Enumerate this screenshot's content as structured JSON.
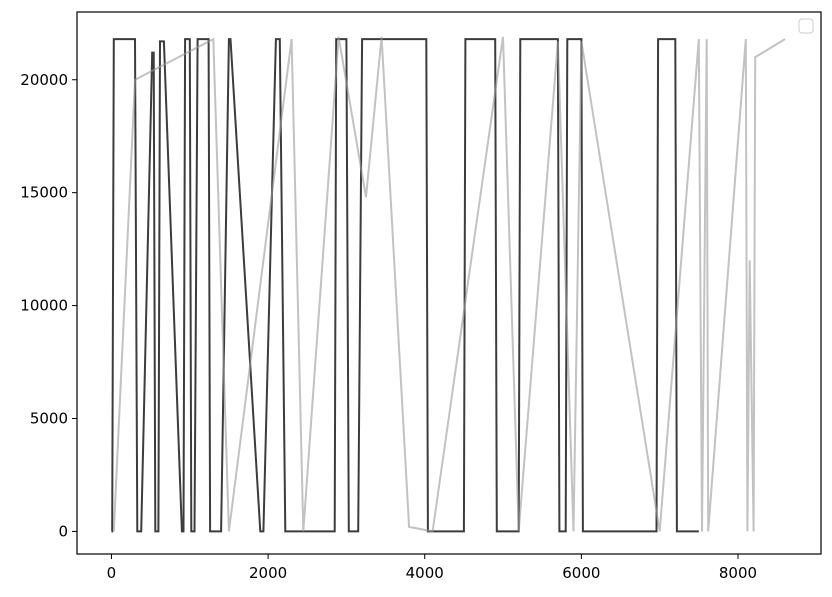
{
  "chart_data": {
    "type": "line",
    "title": "",
    "xlabel": "",
    "ylabel": "",
    "xlim": [
      -440,
      9060
    ],
    "ylim": [
      -1000,
      23000
    ],
    "xticks": [
      0,
      2000,
      4000,
      6000,
      8000
    ],
    "xtick_labels": [
      "0",
      "2000",
      "4000",
      "6000",
      "8000"
    ],
    "yticks": [
      0,
      5000,
      10000,
      15000,
      20000
    ],
    "ytick_labels": [
      "0",
      "5000",
      "10000",
      "15000",
      "20000"
    ],
    "grid": false,
    "legend": {
      "placement": "top-right",
      "entries": []
    },
    "colors": {
      "dark_series": "#1a1a1a",
      "light_series": "#999999",
      "axes": "#000000"
    },
    "series": [
      {
        "color": "#1a1a1a",
        "x": [
          0,
          10,
          30,
          300,
          330,
          380,
          520,
          540,
          560,
          600,
          620,
          670,
          900,
          920,
          940,
          1000,
          1020,
          1060,
          1100,
          1240,
          1260,
          1400,
          1500,
          1520,
          1900,
          1940,
          2100,
          2150,
          2220,
          2850,
          2870,
          3000,
          3030,
          3150,
          3200,
          3400,
          3420,
          4020,
          4040,
          4500,
          4520,
          4900,
          4920,
          5200,
          5220,
          5700,
          5720,
          5800,
          5820,
          6000,
          6020,
          6960,
          6980,
          7200,
          7220,
          7500
        ],
        "y": [
          0,
          0,
          21800,
          21800,
          0,
          0,
          21200,
          21200,
          0,
          0,
          21700,
          21700,
          0,
          0,
          21800,
          21800,
          0,
          0,
          21800,
          21800,
          0,
          0,
          21800,
          21800,
          0,
          0,
          21800,
          21800,
          0,
          0,
          21800,
          21800,
          0,
          0,
          21800,
          21800,
          21800,
          21800,
          0,
          0,
          21800,
          21800,
          0,
          0,
          21800,
          21800,
          0,
          0,
          21800,
          21800,
          0,
          0,
          21800,
          21800,
          0,
          0
        ],
        "description": "dense on/off switching between ~0 and ~21800, many overlapping translucent traces"
      },
      {
        "color": "#999999",
        "x": [
          30,
          300,
          1300,
          1500,
          2300,
          2450,
          2900,
          3250,
          3450,
          3800,
          4100,
          5000,
          5200,
          5700,
          5900,
          6000,
          7000,
          7500,
          7540,
          7600,
          7620,
          8100,
          8120,
          8150,
          8200,
          8220,
          8600
        ],
        "y": [
          0,
          20000,
          21800,
          0,
          21800,
          0,
          21900,
          14800,
          21900,
          200,
          0,
          21900,
          0,
          21700,
          0,
          21700,
          0,
          21800,
          0,
          21800,
          0,
          21800,
          0,
          12000,
          0,
          21000,
          21800
        ],
        "description": "lighter gray traces, extending to x ≈ 8600"
      }
    ]
  }
}
